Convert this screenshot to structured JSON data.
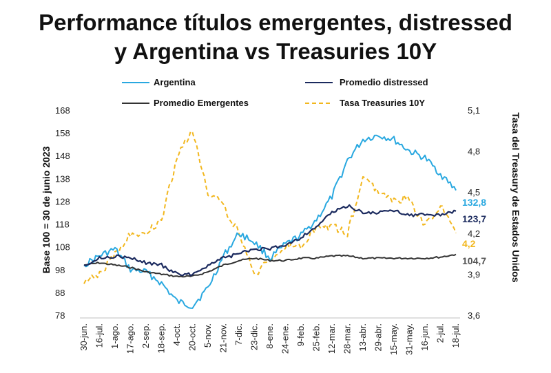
{
  "chart_data": {
    "type": "line",
    "title_line1": "Performance títulos emergentes, distressed",
    "title_line2": "y Argentina vs Treasuries 10Y",
    "ylabel": "Base 100 = 30 de junio 2023",
    "y2label": "Tasa del Treasury de Estados Unidos",
    "ylim": [
      78,
      168
    ],
    "yticks": [
      "168",
      "158",
      "148",
      "138",
      "128",
      "118",
      "108",
      "98",
      "88",
      "78"
    ],
    "y2lim": [
      3.6,
      5.1
    ],
    "y2ticks": [
      "5,1",
      "4,8",
      "4,5",
      "4,2",
      "3,9",
      "3,6"
    ],
    "categories": [
      "30-jun.",
      "16-jul.",
      "1-ago.",
      "17-ago.",
      "2-sep.",
      "18-sep.",
      "4-oct.",
      "20-oct.",
      "5-nov.",
      "21-nov.",
      "7-dic.",
      "23-dic.",
      "8-ene.",
      "24-ene.",
      "9-feb.",
      "25-feb.",
      "12-mar.",
      "28-mar.",
      "13-abr.",
      "29-abr.",
      "15-may.",
      "31-may.",
      "16-jun.",
      "2-jul.",
      "18-jul."
    ],
    "series": [
      {
        "name": "Argentina",
        "color": "#29a8e0",
        "dash": false,
        "axis": "left",
        "values": [
          100,
          104,
          107,
          98,
          97,
          92,
          84,
          82,
          90,
          104,
          114,
          110,
          103,
          109,
          113,
          120,
          130,
          146,
          155,
          157,
          155,
          150,
          147,
          140,
          132.8
        ],
        "end_label": "132,8"
      },
      {
        "name": "Promedio distressed",
        "color": "#1b2a5e",
        "dash": false,
        "axis": "left",
        "values": [
          100,
          103,
          104,
          103,
          101,
          100,
          96,
          96,
          100,
          103,
          105,
          107,
          107,
          109,
          112,
          117,
          123,
          126,
          123,
          123,
          124,
          122,
          122,
          122,
          123.7
        ],
        "end_label": "123,7"
      },
      {
        "name": "Promedio Emergentes",
        "color": "#333333",
        "dash": false,
        "axis": "left",
        "values": [
          100,
          101,
          100,
          99,
          97,
          96,
          95,
          95,
          97,
          100,
          102,
          103,
          102,
          102,
          103,
          103,
          104,
          104,
          103,
          103,
          103,
          103,
          103,
          103.5,
          104.7
        ],
        "end_label": "104,7"
      },
      {
        "name": "Tasa Treasuries 10Y",
        "color": "#f2b71e",
        "dash": true,
        "axis": "right",
        "values": [
          3.83,
          3.9,
          4.05,
          4.2,
          4.2,
          4.3,
          4.75,
          4.95,
          4.5,
          4.4,
          4.2,
          3.9,
          4.0,
          4.1,
          4.1,
          4.25,
          4.25,
          4.2,
          4.6,
          4.5,
          4.45,
          4.45,
          4.25,
          4.4,
          4.2
        ],
        "end_label": "4,2"
      }
    ],
    "legend": [
      "Argentina",
      "Promedio distressed",
      "Promedio Emergentes",
      "Tasa Treasuries 10Y"
    ],
    "legend_position": "top",
    "grid": false
  }
}
